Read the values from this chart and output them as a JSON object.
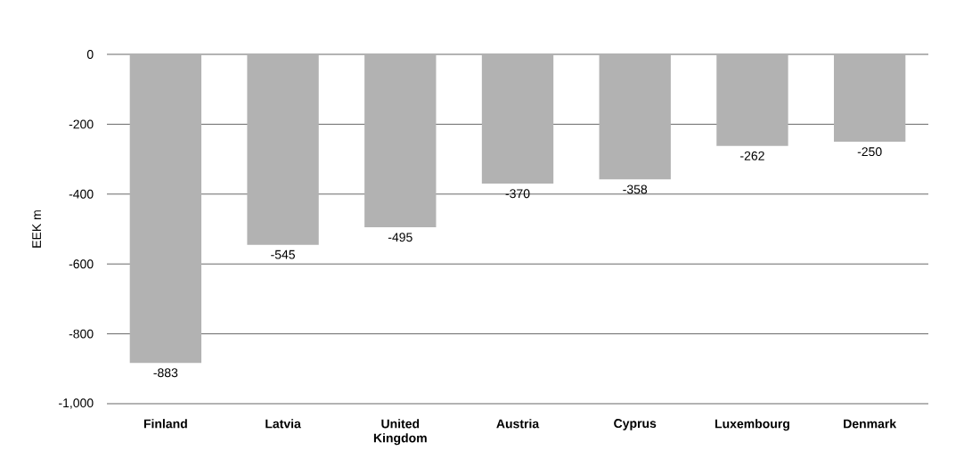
{
  "chart_data": {
    "type": "bar",
    "ylabel": "EEK m",
    "categories": [
      "Finland",
      "Latvia",
      "United Kingdom",
      "Austria",
      "Cyprus",
      "Luxembourg",
      "Denmark"
    ],
    "values": [
      -883,
      -545,
      -495,
      -370,
      -358,
      -262,
      -250
    ],
    "color": "#b2b2b2",
    "data_labels": true,
    "grid": "y",
    "ylim": [
      -1000,
      0
    ],
    "yticks": [
      0,
      -200,
      -400,
      -600,
      -800,
      {
        "value": -1000,
        "label": "-1,000"
      }
    ]
  }
}
